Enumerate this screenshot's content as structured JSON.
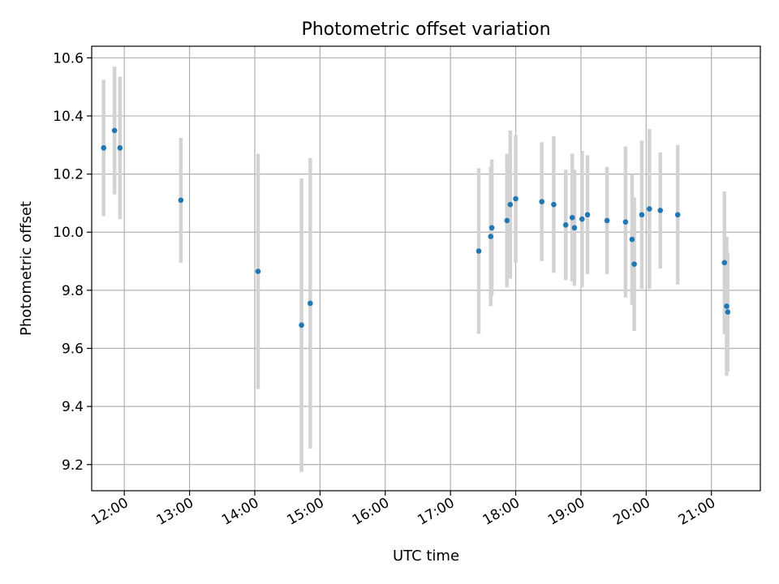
{
  "chart_data": {
    "type": "scatter",
    "title": "Photometric offset variation",
    "xlabel": "UTC time",
    "ylabel": "Photometric offset",
    "x_unit": "UTC hours",
    "xlim": [
      "11:30",
      "21:45"
    ],
    "ylim": [
      9.11,
      10.64
    ],
    "grid": true,
    "error_bar_color": "#d3d3d3",
    "marker_color": "#1f77b4",
    "x_ticks": [
      "12:00",
      "13:00",
      "14:00",
      "15:00",
      "16:00",
      "17:00",
      "18:00",
      "19:00",
      "20:00",
      "21:00"
    ],
    "y_ticks": [
      "9.2",
      "9.4",
      "9.6",
      "9.8",
      "10.0",
      "10.2",
      "10.4",
      "10.6"
    ],
    "points": [
      {
        "time": "11:41",
        "y": 10.29,
        "yerr": 0.235
      },
      {
        "time": "11:51",
        "y": 10.35,
        "yerr": 0.22
      },
      {
        "time": "11:56",
        "y": 10.29,
        "yerr": 0.245
      },
      {
        "time": "12:52",
        "y": 10.11,
        "yerr": 0.215
      },
      {
        "time": "14:03",
        "y": 9.865,
        "yerr": 0.405
      },
      {
        "time": "14:43",
        "y": 9.68,
        "yerr": 0.505
      },
      {
        "time": "14:51",
        "y": 9.755,
        "yerr": 0.5
      },
      {
        "time": "17:26",
        "y": 9.935,
        "yerr": 0.285
      },
      {
        "time": "17:37",
        "y": 9.985,
        "yerr": 0.24
      },
      {
        "time": "17:38",
        "y": 10.015,
        "yerr": 0.235
      },
      {
        "time": "17:52",
        "y": 10.04,
        "yerr": 0.23
      },
      {
        "time": "17:55",
        "y": 10.095,
        "yerr": 0.255
      },
      {
        "time": "18:00",
        "y": 10.115,
        "yerr": 0.22
      },
      {
        "time": "18:24",
        "y": 10.105,
        "yerr": 0.205
      },
      {
        "time": "18:35",
        "y": 10.095,
        "yerr": 0.235
      },
      {
        "time": "18:46",
        "y": 10.025,
        "yerr": 0.19
      },
      {
        "time": "18:52",
        "y": 10.05,
        "yerr": 0.22
      },
      {
        "time": "18:54",
        "y": 10.015,
        "yerr": 0.2
      },
      {
        "time": "19:01",
        "y": 10.045,
        "yerr": 0.235
      },
      {
        "time": "19:06",
        "y": 10.06,
        "yerr": 0.205
      },
      {
        "time": "19:24",
        "y": 10.04,
        "yerr": 0.185
      },
      {
        "time": "19:41",
        "y": 10.035,
        "yerr": 0.26
      },
      {
        "time": "19:47",
        "y": 9.975,
        "yerr": 0.225
      },
      {
        "time": "19:49",
        "y": 9.89,
        "yerr": 0.23
      },
      {
        "time": "19:56",
        "y": 10.06,
        "yerr": 0.255
      },
      {
        "time": "20:03",
        "y": 10.08,
        "yerr": 0.275
      },
      {
        "time": "20:13",
        "y": 10.075,
        "yerr": 0.2
      },
      {
        "time": "20:29",
        "y": 10.06,
        "yerr": 0.24
      },
      {
        "time": "21:12",
        "y": 9.895,
        "yerr": 0.245
      },
      {
        "time": "21:14",
        "y": 9.745,
        "yerr": 0.24
      },
      {
        "time": "21:15",
        "y": 9.725,
        "yerr": 0.205
      }
    ]
  }
}
